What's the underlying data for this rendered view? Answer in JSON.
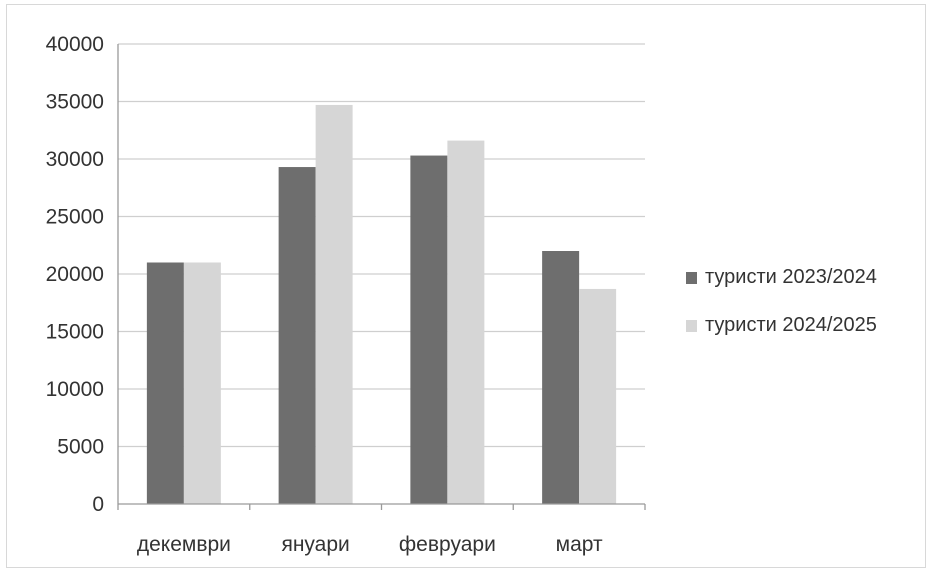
{
  "chart_data": {
    "type": "bar",
    "categories": [
      "декември",
      "януари",
      "февруари",
      "март"
    ],
    "series": [
      {
        "name": "туристи 2023/2024",
        "values": [
          21000,
          29300,
          30300,
          22000
        ]
      },
      {
        "name": "туристи 2024/2025",
        "values": [
          21000,
          34700,
          31600,
          18700
        ]
      }
    ],
    "colors": [
      "#6e6e6e",
      "#d6d6d6"
    ],
    "ylim": [
      0,
      40000
    ],
    "yticks": [
      0,
      5000,
      10000,
      15000,
      20000,
      25000,
      30000,
      35000,
      40000
    ],
    "grid": true,
    "legend_position": "right"
  }
}
